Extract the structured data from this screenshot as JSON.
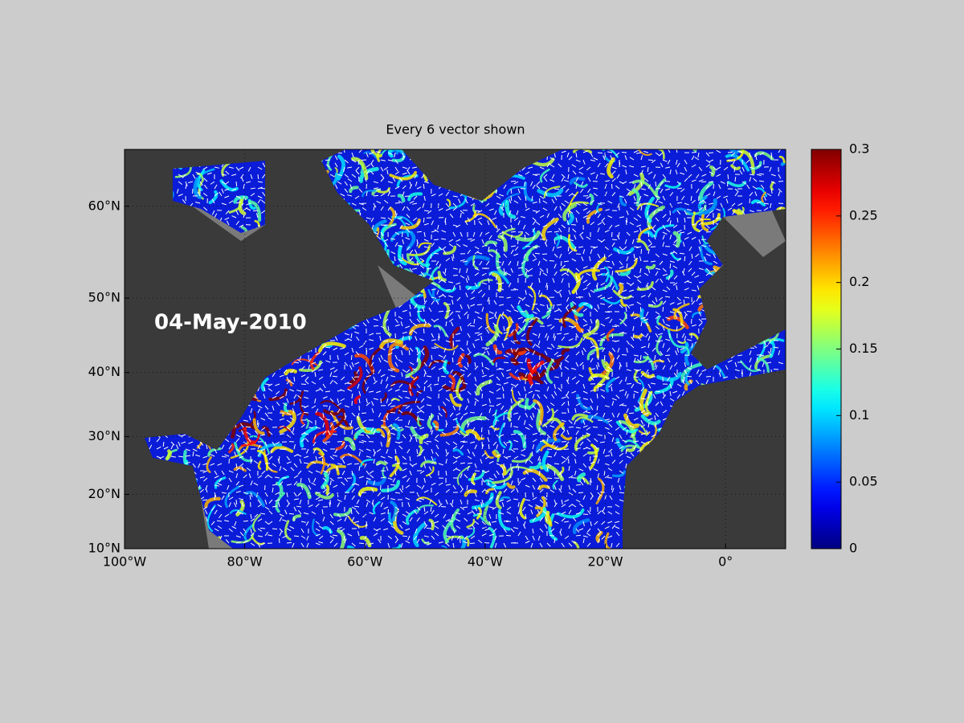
{
  "chart_data": {
    "type": "map",
    "projection": "mercator",
    "title": "Every 6 vector shown",
    "annotation": "04-May-2010",
    "xlim": [
      -100,
      10
    ],
    "xticks": [
      {
        "value": -100,
        "label": "100°W"
      },
      {
        "value": -80,
        "label": "80°W"
      },
      {
        "value": -60,
        "label": "60°W"
      },
      {
        "value": -40,
        "label": "40°W"
      },
      {
        "value": -20,
        "label": "20°W"
      },
      {
        "value": 0,
        "label": "0°"
      }
    ],
    "ylim": [
      10,
      65
    ],
    "yticks": [
      {
        "value": 10,
        "label": "10°N"
      },
      {
        "value": 20,
        "label": "20°N"
      },
      {
        "value": 30,
        "label": "30°N"
      },
      {
        "value": 40,
        "label": "40°N"
      },
      {
        "value": 50,
        "label": "50°N"
      },
      {
        "value": 60,
        "label": "60°N"
      }
    ],
    "grid": true,
    "colormap": "jet",
    "clim": [
      0,
      0.3
    ],
    "cticks": [
      0,
      0.05,
      0.1,
      0.15,
      0.2,
      0.25,
      0.3
    ]
  }
}
